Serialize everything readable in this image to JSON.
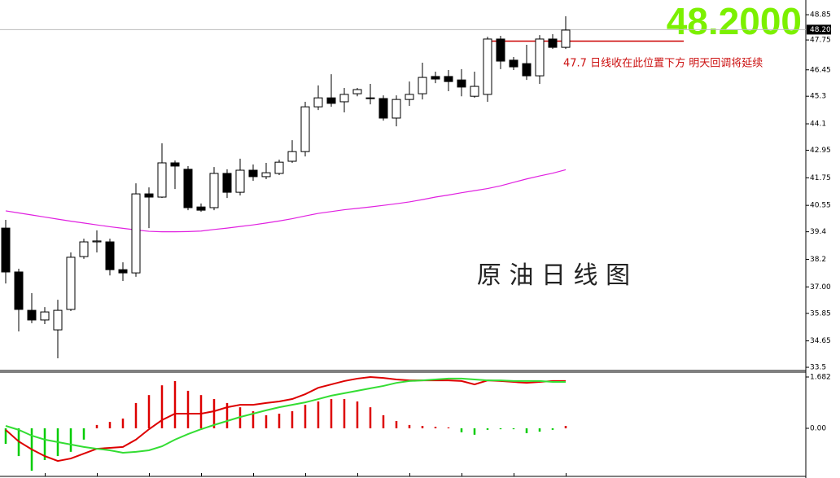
{
  "chart_data": [
    {
      "type": "candlestick",
      "title": "原 油 日 线 图",
      "big_price": "48.2000",
      "note": "47.7 日线收在此位置下方 明天回调将延续",
      "reference_line": 47.7,
      "reference_color": "#cc0000",
      "last_price": {
        "value": 48.2,
        "label": "48.20"
      },
      "up_color": "#ffffff",
      "down_color": "#000000",
      "open": [
        39.56,
        37.65,
        35.98,
        35.56,
        35.13,
        36.02,
        38.32,
        38.96,
        38.96,
        37.75,
        37.61,
        41.05,
        40.91,
        42.4,
        42.12,
        40.48,
        40.45,
        41.94,
        41.12,
        42.08,
        41.8,
        41.94,
        42.47,
        42.89,
        44.84,
        45.23,
        45.06,
        45.41,
        45.23,
        45.2,
        44.35,
        45.16,
        45.41,
        46.16,
        46.16,
        46.01,
        45.3,
        45.38,
        47.79,
        46.87,
        46.72,
        46.19,
        47.79,
        47.43
      ],
      "high": [
        39.92,
        37.79,
        36.73,
        36.12,
        36.44,
        38.5,
        39.1,
        39.46,
        39.1,
        38.07,
        41.51,
        41.33,
        43.25,
        42.5,
        42.26,
        40.63,
        42.22,
        42.12,
        42.58,
        42.33,
        42.4,
        42.54,
        43.39,
        45.06,
        45.77,
        46.26,
        45.66,
        45.66,
        45.84,
        45.34,
        45.34,
        45.94,
        46.76,
        46.37,
        46.44,
        46.48,
        46.37,
        47.89,
        47.93,
        47.01,
        47.54,
        47.96,
        48.0,
        48.78
      ],
      "low": [
        37.15,
        35.06,
        35.42,
        35.38,
        33.89,
        35.95,
        38.22,
        38.5,
        37.5,
        37.26,
        37.44,
        39.56,
        40.87,
        41.26,
        40.34,
        40.27,
        40.34,
        40.87,
        40.98,
        41.62,
        41.69,
        41.87,
        42.4,
        42.68,
        44.7,
        44.84,
        44.6,
        45.3,
        44.95,
        44.24,
        43.99,
        44.88,
        45.16,
        45.87,
        45.52,
        45.3,
        45.23,
        45.06,
        46.48,
        46.44,
        46.01,
        45.84,
        47.36,
        47.36
      ],
      "close": [
        37.65,
        36.02,
        35.56,
        35.91,
        35.98,
        38.29,
        38.96,
        39.0,
        37.75,
        37.61,
        41.05,
        40.91,
        42.4,
        42.26,
        40.45,
        40.34,
        41.94,
        41.12,
        42.08,
        41.8,
        41.97,
        42.43,
        42.89,
        44.84,
        45.23,
        44.99,
        45.38,
        45.59,
        45.2,
        44.35,
        45.16,
        45.38,
        46.12,
        46.05,
        45.94,
        45.7,
        45.73,
        47.79,
        46.83,
        46.58,
        46.19,
        47.79,
        47.43,
        48.18
      ],
      "overlays": [
        {
          "color": "#e020e0",
          "values": [
            40.31,
            40.22,
            40.13,
            40.04,
            39.95,
            39.86,
            39.78,
            39.7,
            39.62,
            39.55,
            39.48,
            39.42,
            39.4,
            39.4,
            39.41,
            39.43,
            39.5,
            39.56,
            39.63,
            39.7,
            39.78,
            39.87,
            39.97,
            40.09,
            40.2,
            40.28,
            40.36,
            40.42,
            40.48,
            40.55,
            40.62,
            40.7,
            40.8,
            40.91,
            41.0,
            41.1,
            41.19,
            41.28,
            41.4,
            41.55,
            41.7,
            41.83,
            41.95,
            42.1
          ]
        }
      ],
      "ylim": [
        33.36,
        49.49
      ],
      "yticks": [
        48.85,
        47.75,
        46.45,
        45.3,
        44.1,
        42.95,
        41.75,
        40.55,
        39.4,
        38.2,
        {
          "value": 37,
          "label": "37.00"
        },
        35.85,
        34.65,
        33.5
      ]
    },
    {
      "type": "macd",
      "histogram": [
        -0.51,
        -0.91,
        -1.39,
        -1.04,
        -0.91,
        -0.77,
        -0.37,
        0.11,
        0.21,
        0.32,
        0.83,
        1.09,
        1.41,
        1.55,
        1.23,
        1.09,
        0.96,
        0.83,
        0.69,
        0.56,
        0.43,
        0.48,
        0.56,
        0.77,
        0.88,
        0.96,
        0.96,
        0.88,
        0.69,
        0.43,
        0.24,
        0.11,
        0.08,
        0.05,
        0.03,
        -0.13,
        -0.21,
        -0.05,
        -0.03,
        -0.03,
        -0.16,
        -0.11,
        -0.05,
        0.08
      ],
      "positive_color": "#dd0000",
      "negative_color": "#00cc00",
      "lines": [
        {
          "color": "#dd0000",
          "values": [
            -0.05,
            -0.43,
            -0.69,
            -0.91,
            -1.07,
            -0.99,
            -0.83,
            -0.67,
            -0.64,
            -0.61,
            -0.37,
            -0.03,
            0.27,
            0.48,
            0.48,
            0.48,
            0.56,
            0.69,
            0.77,
            0.77,
            0.83,
            0.88,
            0.96,
            1.12,
            1.33,
            1.44,
            1.55,
            1.63,
            1.68,
            1.65,
            1.6,
            1.57,
            1.57,
            1.57,
            1.57,
            1.55,
            1.44,
            1.57,
            1.55,
            1.52,
            1.49,
            1.52,
            1.55,
            1.55
          ]
        },
        {
          "color": "#33dd33",
          "values": [
            0.08,
            -0.05,
            -0.24,
            -0.37,
            -0.45,
            -0.53,
            -0.61,
            -0.67,
            -0.72,
            -0.8,
            -0.77,
            -0.72,
            -0.59,
            -0.37,
            -0.19,
            -0.03,
            0.11,
            0.24,
            0.37,
            0.48,
            0.59,
            0.69,
            0.77,
            0.85,
            0.96,
            1.07,
            1.15,
            1.23,
            1.31,
            1.39,
            1.49,
            1.55,
            1.57,
            1.6,
            1.63,
            1.63,
            1.6,
            1.57,
            1.57,
            1.55,
            1.55,
            1.55,
            1.52,
            1.52
          ]
        }
      ],
      "ylim": [
        -1.575,
        1.815
      ],
      "yticks": [
        1.682,
        {
          "value": 0,
          "label": "0.00"
        }
      ]
    }
  ]
}
